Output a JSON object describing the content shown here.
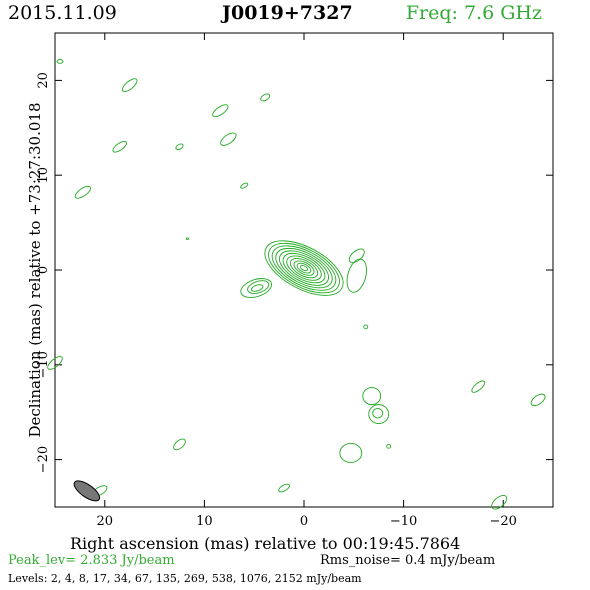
{
  "header": {
    "date": "2015.11.09",
    "source": "J0019+7327",
    "freq": "Freq: 7.6 GHz"
  },
  "footer": {
    "peak": "Peak_lev=  2.833 Jy/beam",
    "rms": "Rms_noise=  0.4 mJy/beam",
    "levels": "Levels:   2,    4,    8,   17,   34,   67,  135,  269,  538,  1076,  2152  mJy/beam"
  },
  "colors": {
    "contour": "#22aa22",
    "text": "#000000",
    "accent": "#33aa33",
    "beam": "#777777"
  },
  "chart_data": {
    "type": "contour",
    "title": "J0019+7327",
    "xlabel": "Right ascension (mas) relative to 00:19:45.7864",
    "ylabel": "Declination (mas) relative to +73:27:30.018",
    "xlim": [
      25,
      -25
    ],
    "ylim": [
      -25,
      25
    ],
    "xticks": [
      20,
      10,
      0,
      -10,
      -20
    ],
    "yticks": [
      20,
      10,
      0,
      -10,
      -20
    ],
    "xtick_labels": [
      "20",
      "10",
      "0",
      "−10",
      "−20"
    ],
    "ytick_labels": [
      "20",
      "10",
      "0",
      "−10",
      "−20"
    ],
    "levels_mjy": [
      2,
      4,
      8,
      17,
      34,
      67,
      135,
      269,
      538,
      1076,
      2152
    ],
    "core": {
      "x": 0,
      "y": 0.2,
      "pa_deg": 28,
      "semi_major": [
        4.3,
        3.9,
        3.5,
        3.1,
        2.7,
        2.3,
        1.9,
        1.5,
        1.1,
        0.75,
        0.4
      ],
      "semi_minor": [
        2.2,
        2.0,
        1.8,
        1.6,
        1.4,
        1.2,
        1.0,
        0.8,
        0.6,
        0.42,
        0.22
      ]
    },
    "components": [
      {
        "x": 4.8,
        "y": -1.9,
        "rx": 1.6,
        "ry": 0.9,
        "rot": -18
      },
      {
        "x": 4.6,
        "y": -1.8,
        "rx": 1.1,
        "ry": 0.6,
        "rot": -18
      },
      {
        "x": 4.7,
        "y": -1.9,
        "rx": 0.6,
        "ry": 0.3,
        "rot": -18
      },
      {
        "x": -5.3,
        "y": -0.6,
        "rx": 0.9,
        "ry": 1.8,
        "rot": 15
      },
      {
        "x": 24.5,
        "y": 22.0,
        "rx": 0.3,
        "ry": 0.2,
        "rot": 0
      },
      {
        "x": 17.5,
        "y": 19.5,
        "rx": 0.9,
        "ry": 0.4,
        "rot": -40
      },
      {
        "x": 3.9,
        "y": 18.2,
        "rx": 0.5,
        "ry": 0.3,
        "rot": -30
      },
      {
        "x": 8.4,
        "y": 16.8,
        "rx": 0.9,
        "ry": 0.4,
        "rot": -35
      },
      {
        "x": 7.6,
        "y": 13.8,
        "rx": 0.9,
        "ry": 0.45,
        "rot": -35
      },
      {
        "x": 18.5,
        "y": 13.0,
        "rx": 0.8,
        "ry": 0.35,
        "rot": -35
      },
      {
        "x": 12.5,
        "y": 13.0,
        "rx": 0.4,
        "ry": 0.25,
        "rot": -30
      },
      {
        "x": 6.0,
        "y": 8.9,
        "rx": 0.4,
        "ry": 0.2,
        "rot": -30
      },
      {
        "x": 22.2,
        "y": 8.2,
        "rx": 0.9,
        "ry": 0.4,
        "rot": -35
      },
      {
        "x": 11.7,
        "y": 3.3,
        "rx": 0.1,
        "ry": 0.1,
        "rot": 0
      },
      {
        "x": -5.3,
        "y": 1.5,
        "rx": 0.9,
        "ry": 0.5,
        "rot": -40
      },
      {
        "x": -6.2,
        "y": -6.0,
        "rx": 0.2,
        "ry": 0.2,
        "rot": 0
      },
      {
        "x": 25.0,
        "y": -9.8,
        "rx": 0.9,
        "ry": 0.4,
        "rot": -40
      },
      {
        "x": -17.5,
        "y": -12.3,
        "rx": 0.8,
        "ry": 0.35,
        "rot": -40
      },
      {
        "x": -23.5,
        "y": -13.7,
        "rx": 0.8,
        "ry": 0.45,
        "rot": -35
      },
      {
        "x": -6.8,
        "y": -13.3,
        "rx": 0.9,
        "ry": 0.9,
        "rot": 0
      },
      {
        "x": -7.5,
        "y": -15.2,
        "rx": 1.0,
        "ry": 1.0,
        "rot": 0
      },
      {
        "x": -7.4,
        "y": -15.1,
        "rx": 0.5,
        "ry": 0.5,
        "rot": 0
      },
      {
        "x": -8.5,
        "y": -18.6,
        "rx": 0.2,
        "ry": 0.2,
        "rot": 0
      },
      {
        "x": -4.7,
        "y": -19.3,
        "rx": 1.1,
        "ry": 1.0,
        "rot": 0
      },
      {
        "x": 12.5,
        "y": -18.4,
        "rx": 0.7,
        "ry": 0.4,
        "rot": -40
      },
      {
        "x": 2.0,
        "y": -23.0,
        "rx": 0.6,
        "ry": 0.3,
        "rot": -30
      },
      {
        "x": 20.5,
        "y": -23.3,
        "rx": 0.8,
        "ry": 0.4,
        "rot": -30
      },
      {
        "x": -19.6,
        "y": -24.5,
        "rx": 0.9,
        "ry": 0.5,
        "rot": -40
      }
    ],
    "beam": {
      "x": 21.8,
      "y": -23.3,
      "major": 1.5,
      "minor": 0.65,
      "pa_deg": -35
    }
  }
}
